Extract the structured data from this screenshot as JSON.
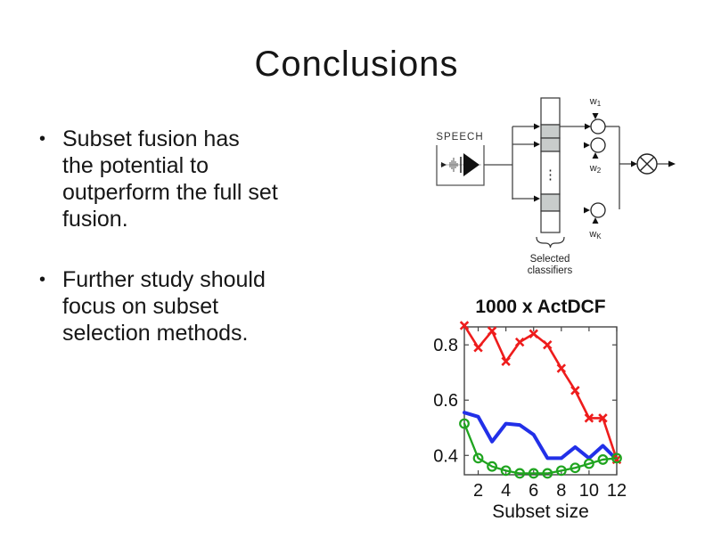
{
  "slide": {
    "title": "Conclusions",
    "bullets": [
      {
        "marker": "•",
        "lines": [
          "Subset fusion has",
          "the potential to",
          "outperform the full set",
          "fusion."
        ]
      },
      {
        "marker": "•",
        "lines": [
          "Further study should",
          "focus on subset",
          "selection methods."
        ]
      }
    ]
  },
  "diagram": {
    "speech_label": "SPEECH",
    "ellipsis": "⋮",
    "weights": [
      {
        "base": "w",
        "sub": "1"
      },
      {
        "base": "w",
        "sub": "2"
      },
      {
        "base": "w",
        "sub": "K"
      }
    ],
    "selected_classifiers_label": [
      "Selected",
      "classifiers"
    ],
    "colors": {
      "cell_gray": "#c8cccb",
      "line": "#333333"
    }
  },
  "chart_data": {
    "type": "line",
    "title": "1000 x ActDCF",
    "xlabel": "Subset size",
    "ylabel": "",
    "x": [
      1,
      2,
      3,
      4,
      5,
      6,
      7,
      8,
      9,
      10,
      11,
      12
    ],
    "xlim": [
      1,
      12
    ],
    "ylim": [
      0.33,
      0.865
    ],
    "xticks": [
      2,
      4,
      6,
      8,
      10,
      12
    ],
    "yticks": [
      0.4,
      0.6,
      0.8
    ],
    "grid": false,
    "legend_position": "none",
    "series": [
      {
        "name": "blue-line",
        "color": "#2230e8",
        "marker": "none",
        "line_width": 4,
        "values": [
          0.555,
          0.54,
          0.45,
          0.515,
          0.51,
          0.475,
          0.39,
          0.39,
          0.43,
          0.39,
          0.435,
          0.385
        ]
      },
      {
        "name": "red-x",
        "color": "#ee1c1c",
        "marker": "x",
        "line_width": 2.6,
        "values": [
          0.87,
          0.79,
          0.85,
          0.74,
          0.81,
          0.84,
          0.8,
          0.715,
          0.635,
          0.535,
          0.535,
          0.385
        ]
      },
      {
        "name": "green-o",
        "color": "#1fa41f",
        "marker": "o",
        "line_width": 2.3,
        "values": [
          0.515,
          0.39,
          0.36,
          0.345,
          0.335,
          0.335,
          0.335,
          0.345,
          0.355,
          0.37,
          0.385,
          0.39
        ]
      }
    ]
  }
}
